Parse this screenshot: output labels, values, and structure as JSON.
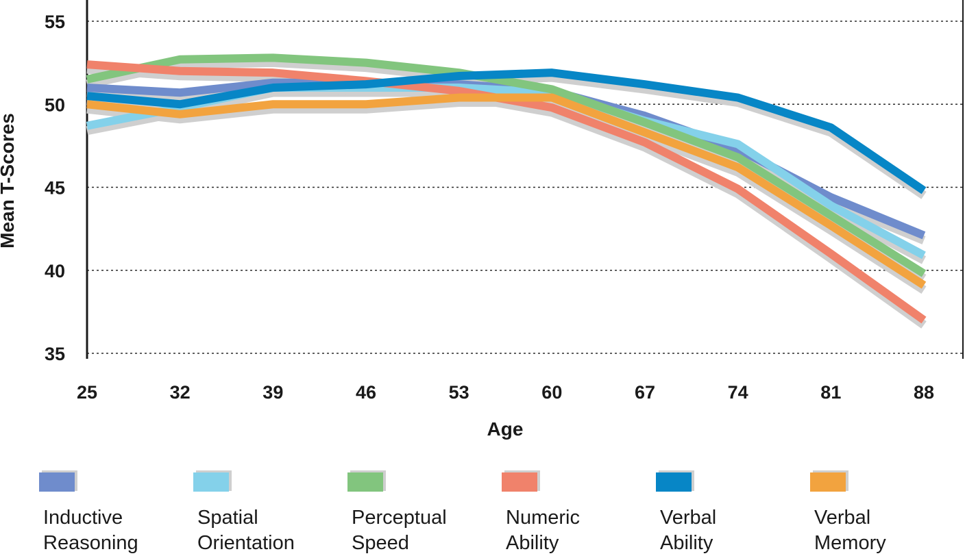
{
  "chart_data": {
    "type": "line",
    "title": "",
    "xlabel": "Age",
    "ylabel": "Mean T-Scores",
    "x": [
      25,
      32,
      39,
      46,
      53,
      60,
      67,
      74,
      81,
      88
    ],
    "x_tick_labels": [
      "25",
      "32",
      "39",
      "46",
      "53",
      "60",
      "67",
      "74",
      "81",
      "88"
    ],
    "ylim": [
      35,
      55
    ],
    "y_ticks": [
      35,
      40,
      45,
      50,
      55
    ],
    "y_tick_labels": [
      "35",
      "40",
      "45",
      "50",
      "55"
    ],
    "grid": "horizontal-dotted",
    "legend_position": "bottom",
    "series": [
      {
        "name": "Inductive Reasoning",
        "color": "#6f8ccc",
        "values": [
          51.0,
          50.7,
          51.3,
          51.3,
          51.2,
          50.8,
          49.3,
          47.3,
          44.4,
          42.1
        ]
      },
      {
        "name": "Spatial Orientation",
        "color": "#84d1ea",
        "values": [
          48.7,
          49.8,
          51.0,
          51.0,
          51.0,
          50.7,
          49.0,
          47.6,
          43.9,
          40.9
        ]
      },
      {
        "name": "Perceptual Speed",
        "color": "#82c57e",
        "values": [
          51.5,
          52.7,
          52.8,
          52.5,
          51.9,
          50.9,
          48.9,
          46.8,
          43.3,
          39.8
        ]
      },
      {
        "name": "Numeric Ability",
        "color": "#f0826b",
        "values": [
          52.4,
          52.0,
          51.9,
          51.4,
          50.8,
          49.8,
          47.7,
          44.9,
          41.0,
          37.0
        ]
      },
      {
        "name": "Verbal Ability",
        "color": "#0786c6",
        "values": [
          50.5,
          50.0,
          51.0,
          51.2,
          51.7,
          51.9,
          51.2,
          50.4,
          48.6,
          44.8
        ]
      },
      {
        "name": "Verbal Memory",
        "color": "#f2a33f",
        "values": [
          50.0,
          49.4,
          50.0,
          50.0,
          50.4,
          50.4,
          48.3,
          46.2,
          42.7,
          39.1
        ]
      }
    ],
    "legend_labels": [
      [
        "Inductive",
        "Reasoning"
      ],
      [
        "Spatial",
        "Orientation"
      ],
      [
        "Perceptual",
        "Speed"
      ],
      [
        "Numeric",
        "Ability"
      ],
      [
        "Verbal",
        "Ability"
      ],
      [
        "Verbal",
        "Memory"
      ]
    ]
  }
}
